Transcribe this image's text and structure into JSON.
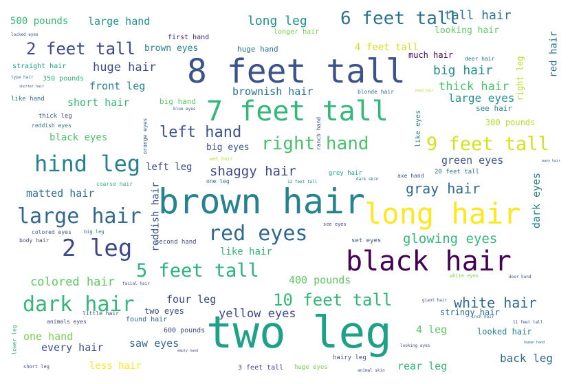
{
  "words": [
    {
      "text": "two leg",
      "color": "#1fa187"
    },
    {
      "text": "8 feet tall",
      "color": "#3b528b"
    },
    {
      "text": "brown hair",
      "color": "#26828e"
    },
    {
      "text": "7 feet tall",
      "color": "#35b779"
    },
    {
      "text": "long hair",
      "color": "#fde725"
    },
    {
      "text": "black hair",
      "color": "#440154"
    },
    {
      "text": "hind leg",
      "color": "#26828e"
    },
    {
      "text": "large hair",
      "color": "#31688e"
    },
    {
      "text": "red eyes",
      "color": "#31688e"
    },
    {
      "text": "2 leg",
      "color": "#3e4989"
    },
    {
      "text": "dark hair",
      "color": "#35b779"
    },
    {
      "text": "9 feet tall",
      "color": "#d2e21b"
    },
    {
      "text": "right hand",
      "color": "#4ac16d"
    },
    {
      "text": "5 feet tall",
      "color": "#2db27d"
    },
    {
      "text": "10 feet tall",
      "color": "#35b779"
    },
    {
      "text": "6 feet tall",
      "color": "#2c728e"
    },
    {
      "text": "2 feet tall",
      "color": "#3e4989"
    },
    {
      "text": "white hair",
      "color": "#31688e"
    },
    {
      "text": "left hand",
      "color": "#3b528b"
    },
    {
      "text": "glowing eyes",
      "color": "#35b779"
    },
    {
      "text": "gray hair",
      "color": "#31688e"
    },
    {
      "text": "shaggy hair",
      "color": "#3e4989"
    },
    {
      "text": "long leg",
      "color": "#21918c"
    },
    {
      "text": "yellow eyes",
      "color": "#3e4989"
    },
    {
      "text": "colored hair",
      "color": "#5ec962"
    },
    {
      "text": "tall hair",
      "color": "#2c728e"
    },
    {
      "text": "huge hair",
      "color": "#3e4989"
    },
    {
      "text": "big hair",
      "color": "#21918c"
    },
    {
      "text": "thick hair",
      "color": "#4ac16d"
    },
    {
      "text": "large eyes",
      "color": "#21918c"
    },
    {
      "text": "brownish hair",
      "color": "#2c728e"
    },
    {
      "text": "matted hair",
      "color": "#2c728e"
    },
    {
      "text": "large hand",
      "color": "#21918c"
    },
    {
      "text": "500 pounds",
      "color": "#35b779"
    },
    {
      "text": "front leg",
      "color": "#26828e"
    },
    {
      "text": "short hair",
      "color": "#35b779"
    },
    {
      "text": "green eyes",
      "color": "#3b528b"
    },
    {
      "text": "400 pounds",
      "color": "#5ec962"
    },
    {
      "text": "four leg",
      "color": "#3e4989"
    },
    {
      "text": "one hand",
      "color": "#7ad151"
    },
    {
      "text": "every hair",
      "color": "#3b528b"
    },
    {
      "text": "saw eyes",
      "color": "#31688e"
    },
    {
      "text": "back leg",
      "color": "#31688e"
    },
    {
      "text": "rear leg",
      "color": "#35b779"
    },
    {
      "text": "4 leg",
      "color": "#5ec962"
    },
    {
      "text": "less hair",
      "color": "#fde725"
    },
    {
      "text": "like hair",
      "color": "#35b779"
    },
    {
      "text": "black eyes",
      "color": "#4ac16d"
    },
    {
      "text": "left leg",
      "color": "#3e4989"
    },
    {
      "text": "big eyes",
      "color": "#3b528b"
    },
    {
      "text": "4 feet tall",
      "color": "#d2e21b"
    },
    {
      "text": "looking hair",
      "color": "#5ec962"
    },
    {
      "text": "brown eyes",
      "color": "#26828e"
    },
    {
      "text": "red hair",
      "color": "#2c728e"
    },
    {
      "text": "dark eyes",
      "color": "#26828e"
    },
    {
      "text": "reddish hair",
      "color": "#3b528b"
    },
    {
      "text": "stringy hair",
      "color": "#31688e"
    },
    {
      "text": "looked hair",
      "color": "#26828e"
    },
    {
      "text": "300 pounds",
      "color": "#b5de2b"
    },
    {
      "text": "two eyes",
      "color": "#3e4989"
    },
    {
      "text": "much hair",
      "color": "#440154"
    },
    {
      "text": "see hair",
      "color": "#26828e"
    },
    {
      "text": "right leg",
      "color": "#b5de2b"
    },
    {
      "text": "big hand",
      "color": "#5ec962"
    },
    {
      "text": "huge hand",
      "color": "#2c728e"
    },
    {
      "text": "first hand",
      "color": "#482878"
    },
    {
      "text": "longer hair",
      "color": "#7ad151"
    },
    {
      "text": "350 pounds",
      "color": "#35b779"
    },
    {
      "text": "straight hair",
      "color": "#1fa187"
    },
    {
      "text": "600 pounds",
      "color": "#3e4989"
    },
    {
      "text": "found hair",
      "color": "#31688e"
    },
    {
      "text": "like eyes",
      "color": "#26828e"
    },
    {
      "text": "ranch hand",
      "color": "#3e4989"
    },
    {
      "text": "orange eyes",
      "color": "#31688e"
    },
    {
      "text": "3 feet tall",
      "color": "#3e4989"
    },
    {
      "text": "huge eyes",
      "color": "#7ad151"
    },
    {
      "text": "hairy leg",
      "color": "#3e4989"
    },
    {
      "text": "set eyes",
      "color": "#3b528b"
    },
    {
      "text": "grey hair",
      "color": "#1fa187"
    },
    {
      "text": "axe hand",
      "color": "#3b528b"
    },
    {
      "text": "20 feet tall",
      "color": "#2c728e"
    },
    {
      "text": "one leg",
      "color": "#31688e"
    },
    {
      "text": "second hand",
      "color": "#3e4989"
    },
    {
      "text": "like hand",
      "color": "#2c728e"
    },
    {
      "text": "thick leg",
      "color": "#3b528b"
    },
    {
      "text": "reddish eyes",
      "color": "#2c728e"
    },
    {
      "text": "coarse hair",
      "color": "#35b779"
    },
    {
      "text": "body hair",
      "color": "#3e4989"
    },
    {
      "text": "colored eyes",
      "color": "#3b528b"
    },
    {
      "text": "big leg",
      "color": "#31688e"
    },
    {
      "text": "animals eyes",
      "color": "#3e4989"
    },
    {
      "text": "little hair",
      "color": "#3b528b"
    },
    {
      "text": "lower leg",
      "color": "#35b779"
    },
    {
      "text": "short leg",
      "color": "#3e4989"
    },
    {
      "text": "blonde hair",
      "color": "#2c728e"
    },
    {
      "text": "deer hair",
      "color": "#2c728e"
    },
    {
      "text": "blue eyes",
      "color": "#3b528b"
    },
    {
      "text": "wet hair",
      "color": "#b5de2b"
    },
    {
      "text": "see eyes",
      "color": "#3e4989"
    },
    {
      "text": "white eyes",
      "color": "#7ad151"
    },
    {
      "text": "giant hair",
      "color": "#3e4989"
    },
    {
      "text": "inch hair",
      "color": "#2c728e"
    },
    {
      "text": "11 feet tall",
      "color": "#3b528b"
    },
    {
      "text": "empty hand",
      "color": "#3e4989"
    },
    {
      "text": "animal skin",
      "color": "#3e4989"
    },
    {
      "text": "12 feet tall",
      "color": "#2c728e"
    },
    {
      "text": "dark skin",
      "color": "#2c728e"
    },
    {
      "text": "head hair",
      "color": "#b5de2b"
    },
    {
      "text": "locked eyes",
      "color": "#3e4989"
    },
    {
      "text": "type hair",
      "color": "#2c728e"
    },
    {
      "text": "shorter hair",
      "color": "#3b528b"
    },
    {
      "text": "facial hair",
      "color": "#3b528b"
    },
    {
      "text": "door hand",
      "color": "#3b528b"
    },
    {
      "text": "wavy hair",
      "color": "#3b528b"
    },
    {
      "text": "human hand",
      "color": "#31688e"
    },
    {
      "text": "looking eyes",
      "color": "#3e4989"
    }
  ]
}
